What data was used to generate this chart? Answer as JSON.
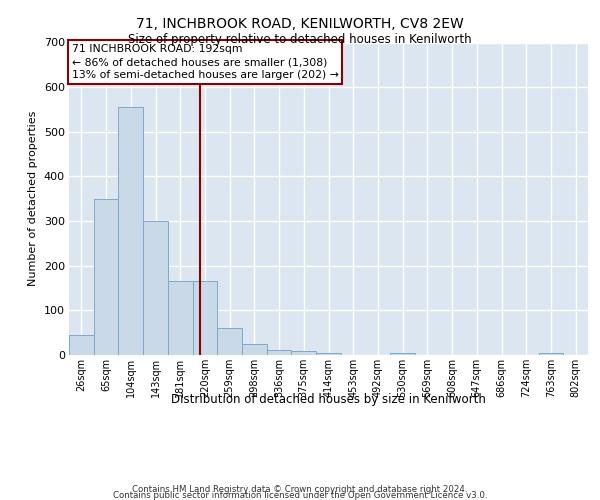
{
  "title": "71, INCHBROOK ROAD, KENILWORTH, CV8 2EW",
  "subtitle": "Size of property relative to detached houses in Kenilworth",
  "xlabel": "Distribution of detached houses by size in Kenilworth",
  "ylabel": "Number of detached properties",
  "footer_line1": "Contains HM Land Registry data © Crown copyright and database right 2024.",
  "footer_line2": "Contains public sector information licensed under the Open Government Licence v3.0.",
  "bin_labels": [
    "26sqm",
    "65sqm",
    "104sqm",
    "143sqm",
    "181sqm",
    "220sqm",
    "259sqm",
    "298sqm",
    "336sqm",
    "375sqm",
    "414sqm",
    "453sqm",
    "492sqm",
    "530sqm",
    "569sqm",
    "608sqm",
    "647sqm",
    "686sqm",
    "724sqm",
    "763sqm",
    "802sqm"
  ],
  "bar_values": [
    45,
    350,
    555,
    300,
    165,
    165,
    60,
    25,
    12,
    8,
    5,
    0,
    0,
    5,
    0,
    0,
    0,
    0,
    0,
    5,
    0
  ],
  "bar_color": "#c9d9e8",
  "bar_edge_color": "#7aabcc",
  "background_color": "#dce6f0",
  "grid_color": "#ffffff",
  "property_line_x": 4.82,
  "property_line_color": "#8b0000",
  "annotation_text": "71 INCHBROOK ROAD: 192sqm\n← 86% of detached houses are smaller (1,308)\n13% of semi-detached houses are larger (202) →",
  "annotation_box_color": "#8b0000",
  "ylim": [
    0,
    700
  ],
  "yticks": [
    0,
    100,
    200,
    300,
    400,
    500,
    600,
    700
  ]
}
